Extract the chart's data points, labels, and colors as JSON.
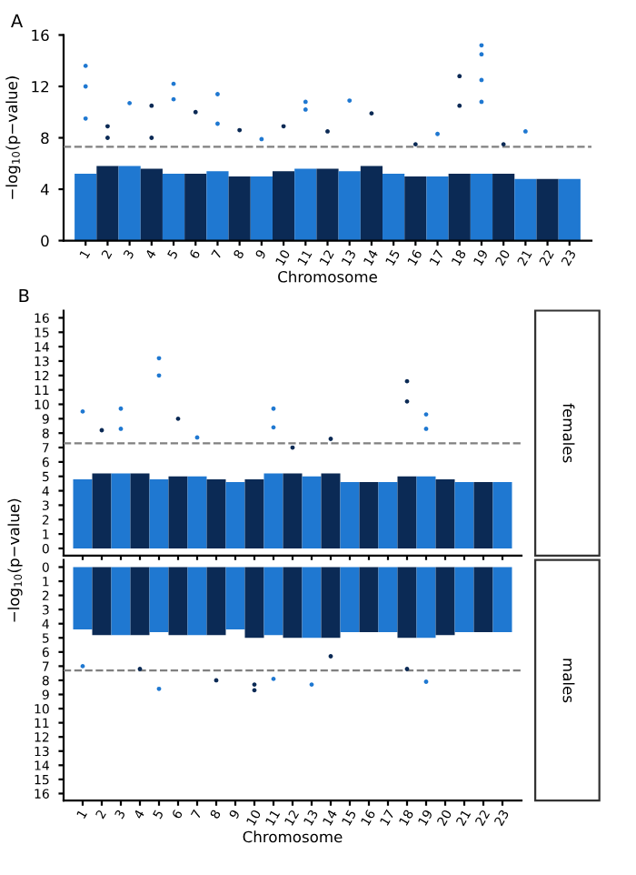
{
  "chart_data": [
    {
      "type": "bar",
      "title": "A",
      "xlabel": "Chromosome",
      "ylabel": "−log$_{10}$(p−value)",
      "categories": [
        "1",
        "2",
        "3",
        "4",
        "5",
        "6",
        "7",
        "8",
        "9",
        "10",
        "11",
        "12",
        "13",
        "14",
        "15",
        "16",
        "17",
        "18",
        "19",
        "20",
        "21",
        "22",
        "23"
      ],
      "ylim": [
        0,
        16
      ],
      "yticks": [
        0,
        4,
        8,
        12,
        16
      ],
      "marker": "circle",
      "ref_lines": [
        {
          "axis": "y",
          "value": 7.3,
          "color": "#808080",
          "line_style": "dashed"
        }
      ],
      "series": [
        {
          "values": [
            5.2,
            5.8,
            5.8,
            5.6,
            5.2,
            5.2,
            5.4,
            5.0,
            5.0,
            5.4,
            5.6,
            5.6,
            5.4,
            5.8,
            5.2,
            5.0,
            5.0,
            5.2,
            5.2,
            5.2,
            4.8,
            4.8,
            4.8
          ],
          "colors": [
            "#1f78d1",
            "#0b2a55",
            "#1f78d1",
            "#0b2a55",
            "#1f78d1",
            "#0b2a55",
            "#1f78d1",
            "#0b2a55",
            "#1f78d1",
            "#0b2a55",
            "#1f78d1",
            "#0b2a55",
            "#1f78d1",
            "#0b2a55",
            "#1f78d1",
            "#0b2a55",
            "#1f78d1",
            "#0b2a55",
            "#1f78d1",
            "#0b2a55",
            "#1f78d1",
            "#0b2a55",
            "#1f78d1"
          ]
        },
        {
          "type": "scatter",
          "x": [
            "1",
            "1",
            "1",
            "2",
            "2",
            "3",
            "4",
            "4",
            "5",
            "5",
            "6",
            "7",
            "7",
            "8",
            "9",
            "10",
            "11",
            "11",
            "12",
            "13",
            "14",
            "16",
            "17",
            "18",
            "18",
            "19",
            "19",
            "19",
            "19",
            "20",
            "21"
          ],
          "values": [
            13.6,
            12.0,
            9.5,
            8.0,
            8.9,
            10.7,
            10.5,
            8.0,
            12.2,
            11.0,
            10.0,
            11.4,
            9.1,
            8.6,
            7.9,
            8.9,
            10.8,
            10.2,
            8.5,
            10.9,
            9.9,
            7.5,
            8.3,
            12.8,
            10.5,
            15.2,
            14.5,
            12.5,
            10.8,
            7.5,
            8.5
          ],
          "colors": [
            "#1f78d1",
            "#1f78d1",
            "#1f78d1",
            "#0b2a55",
            "#0b2a55",
            "#1f78d1",
            "#0b2a55",
            "#0b2a55",
            "#1f78d1",
            "#1f78d1",
            "#0b2a55",
            "#1f78d1",
            "#1f78d1",
            "#0b2a55",
            "#1f78d1",
            "#0b2a55",
            "#1f78d1",
            "#1f78d1",
            "#0b2a55",
            "#1f78d1",
            "#0b2a55",
            "#0b2a55",
            "#1f78d1",
            "#0b2a55",
            "#0b2a55",
            "#1f78d1",
            "#1f78d1",
            "#1f78d1",
            "#1f78d1",
            "#0b2a55",
            "#1f78d1"
          ]
        }
      ]
    },
    {
      "type": "bar",
      "title": "B",
      "ylabel": "−log$_{10}$(p−value)",
      "categories": [
        "1",
        "2",
        "3",
        "4",
        "5",
        "6",
        "7",
        "8",
        "9",
        "10",
        "11",
        "12",
        "13",
        "14",
        "15",
        "16",
        "17",
        "18",
        "19",
        "20",
        "21",
        "22",
        "23"
      ],
      "ylim": [
        -0.5,
        16.5
      ],
      "yticks": [
        0,
        1,
        2,
        3,
        4,
        5,
        6,
        7,
        8,
        9,
        10,
        11,
        12,
        13,
        14,
        15,
        16
      ],
      "tick_labels": "y",
      "marker": "circle",
      "annotations": [
        "females"
      ],
      "ref_lines": [
        {
          "axis": "y",
          "value": 7.3,
          "color": "#808080",
          "line_style": "dashed"
        }
      ],
      "series": [
        {
          "values": [
            4.8,
            5.2,
            5.2,
            5.2,
            4.8,
            5.0,
            5.0,
            4.8,
            4.6,
            4.8,
            5.2,
            5.2,
            5.0,
            5.2,
            4.6,
            4.6,
            4.6,
            5.0,
            5.0,
            4.8,
            4.6,
            4.6,
            4.6
          ],
          "colors": [
            "#1f78d1",
            "#0b2a55",
            "#1f78d1",
            "#0b2a55",
            "#1f78d1",
            "#0b2a55",
            "#1f78d1",
            "#0b2a55",
            "#1f78d1",
            "#0b2a55",
            "#1f78d1",
            "#0b2a55",
            "#1f78d1",
            "#0b2a55",
            "#1f78d1",
            "#0b2a55",
            "#1f78d1",
            "#0b2a55",
            "#1f78d1",
            "#0b2a55",
            "#1f78d1",
            "#0b2a55",
            "#1f78d1"
          ]
        },
        {
          "type": "scatter",
          "x": [
            "1",
            "2",
            "3",
            "3",
            "5",
            "5",
            "6",
            "7",
            "11",
            "11",
            "12",
            "14",
            "18",
            "18",
            "19",
            "19"
          ],
          "values": [
            9.5,
            8.2,
            9.7,
            8.3,
            13.2,
            12.0,
            9.0,
            7.7,
            8.4,
            9.7,
            7.0,
            7.6,
            11.6,
            10.2,
            9.3,
            8.3
          ],
          "colors": [
            "#1f78d1",
            "#0b2a55",
            "#1f78d1",
            "#1f78d1",
            "#1f78d1",
            "#1f78d1",
            "#0b2a55",
            "#1f78d1",
            "#1f78d1",
            "#1f78d1",
            "#0b2a55",
            "#0b2a55",
            "#0b2a55",
            "#0b2a55",
            "#1f78d1",
            "#1f78d1"
          ]
        }
      ]
    },
    {
      "type": "bar",
      "xlabel": "Chromosome",
      "categories": [
        "1",
        "2",
        "3",
        "4",
        "5",
        "6",
        "7",
        "8",
        "9",
        "10",
        "11",
        "12",
        "13",
        "14",
        "15",
        "16",
        "17",
        "18",
        "19",
        "20",
        "21",
        "22",
        "23"
      ],
      "ylim": [
        16.5,
        -0.5
      ],
      "yticks": [
        0,
        1,
        2,
        3,
        4,
        5,
        6,
        7,
        8,
        9,
        10,
        11,
        12,
        13,
        14,
        15,
        16
      ],
      "marker": "circle",
      "annotations": [
        "males"
      ],
      "ref_lines": [
        {
          "axis": "y",
          "value": 7.3,
          "color": "#808080",
          "line_style": "dashed"
        }
      ],
      "series": [
        {
          "values": [
            4.4,
            4.8,
            4.8,
            4.8,
            4.6,
            4.8,
            4.8,
            4.8,
            4.4,
            5.0,
            4.8,
            5.0,
            5.0,
            5.0,
            4.6,
            4.6,
            4.6,
            5.0,
            5.0,
            4.8,
            4.6,
            4.6,
            4.6
          ],
          "colors": [
            "#1f78d1",
            "#0b2a55",
            "#1f78d1",
            "#0b2a55",
            "#1f78d1",
            "#0b2a55",
            "#1f78d1",
            "#0b2a55",
            "#1f78d1",
            "#0b2a55",
            "#1f78d1",
            "#0b2a55",
            "#1f78d1",
            "#0b2a55",
            "#1f78d1",
            "#0b2a55",
            "#1f78d1",
            "#0b2a55",
            "#1f78d1",
            "#0b2a55",
            "#1f78d1",
            "#0b2a55",
            "#1f78d1"
          ]
        },
        {
          "type": "scatter",
          "x": [
            "1",
            "4",
            "5",
            "8",
            "10",
            "10",
            "11",
            "13",
            "14",
            "18",
            "19"
          ],
          "values": [
            7.0,
            7.2,
            8.6,
            8.0,
            8.7,
            8.3,
            7.9,
            8.3,
            6.3,
            7.2,
            8.1
          ],
          "colors": [
            "#1f78d1",
            "#0b2a55",
            "#1f78d1",
            "#0b2a55",
            "#0b2a55",
            "#0b2a55",
            "#1f78d1",
            "#1f78d1",
            "#0b2a55",
            "#0b2a55",
            "#1f78d1"
          ]
        }
      ]
    }
  ]
}
